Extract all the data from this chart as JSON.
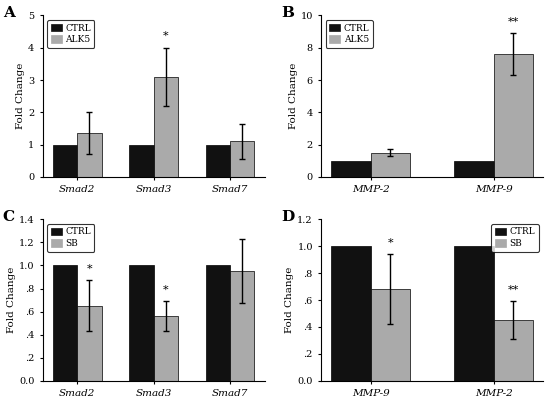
{
  "panel_A": {
    "label": "A",
    "categories": [
      "Smad2",
      "Smad3",
      "Smad7"
    ],
    "ctrl_values": [
      1.0,
      1.0,
      1.0
    ],
    "treat_values": [
      1.35,
      3.1,
      1.1
    ],
    "ctrl_err": [
      0.0,
      0.0,
      0.0
    ],
    "treat_err": [
      0.65,
      0.9,
      0.55
    ],
    "ylim": [
      0,
      5
    ],
    "yticks": [
      0,
      1,
      2,
      3,
      4,
      5
    ],
    "yticklabels": [
      "0",
      "1",
      "2",
      "3",
      "4",
      "5"
    ],
    "ylabel": "Fold Change",
    "legend_treat": "ALK5",
    "significance": [
      null,
      "*",
      null
    ],
    "sig_on_treat": [
      false,
      true,
      false
    ]
  },
  "panel_B": {
    "label": "B",
    "categories": [
      "MMP-2",
      "MMP-9"
    ],
    "ctrl_values": [
      1.0,
      1.0
    ],
    "treat_values": [
      1.5,
      7.6
    ],
    "ctrl_err": [
      0.0,
      0.0
    ],
    "treat_err": [
      0.2,
      1.3
    ],
    "ylim": [
      0,
      10
    ],
    "yticks": [
      0,
      2,
      4,
      6,
      8,
      10
    ],
    "yticklabels": [
      "0",
      "2",
      "4",
      "6",
      "8",
      "10"
    ],
    "ylabel": "Fold Change",
    "legend_treat": "ALK5",
    "significance": [
      null,
      "**"
    ],
    "sig_on_treat": [
      false,
      true
    ]
  },
  "panel_C": {
    "label": "C",
    "categories": [
      "Smad2",
      "Smad3",
      "Smad7"
    ],
    "ctrl_values": [
      1.0,
      1.0,
      1.0
    ],
    "treat_values": [
      0.65,
      0.56,
      0.95
    ],
    "ctrl_err": [
      0.0,
      0.0,
      0.0
    ],
    "treat_err": [
      0.22,
      0.13,
      0.28
    ],
    "ylim": [
      0,
      1.4
    ],
    "yticks": [
      0.0,
      0.2,
      0.4,
      0.6,
      0.8,
      1.0,
      1.2,
      1.4
    ],
    "yticklabels": [
      "0.0",
      ".2",
      ".4",
      ".6",
      ".8",
      "1.0",
      "1.2",
      "1.4"
    ],
    "ylabel": "Fold Change",
    "legend_treat": "SB",
    "significance": [
      "*",
      "*",
      null
    ],
    "sig_on_treat": [
      true,
      true,
      false
    ]
  },
  "panel_D": {
    "label": "D",
    "categories": [
      "MMP-9",
      "MMP-2"
    ],
    "ctrl_values": [
      1.0,
      1.0
    ],
    "treat_values": [
      0.68,
      0.45
    ],
    "ctrl_err": [
      0.0,
      0.0
    ],
    "treat_err": [
      0.26,
      0.14
    ],
    "ylim": [
      0,
      1.2
    ],
    "yticks": [
      0.0,
      0.2,
      0.4,
      0.6,
      0.8,
      1.0,
      1.2
    ],
    "yticklabels": [
      "0.0",
      ".2",
      ".4",
      ".6",
      ".8",
      "1.0",
      "1.2"
    ],
    "ylabel": "Fold Change",
    "legend_treat": "SB",
    "significance": [
      "*",
      "**"
    ],
    "sig_on_treat": [
      true,
      true
    ]
  },
  "ctrl_color": "#111111",
  "treat_color_AB": "#aaaaaa",
  "treat_color_CD": "#aaaaaa",
  "bar_width": 0.32,
  "fig_bg": "#ffffff"
}
